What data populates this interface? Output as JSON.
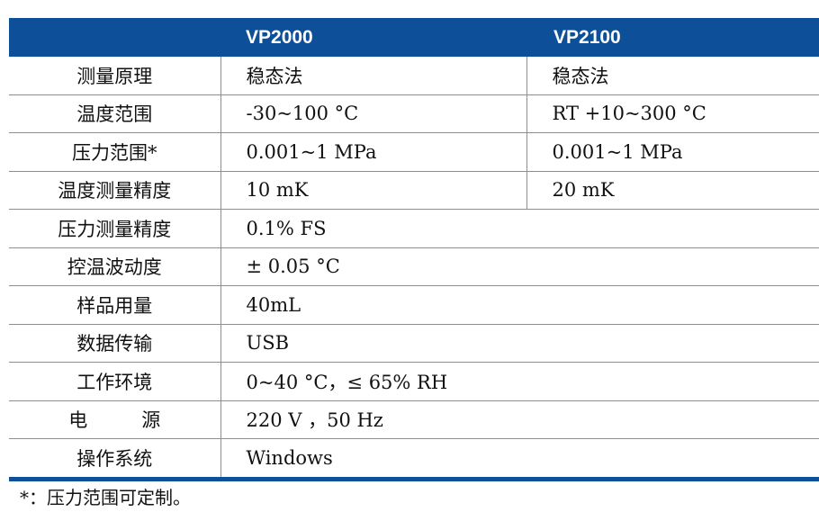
{
  "header": {
    "col1": "",
    "col2": "VP2000",
    "col3": "VP2100"
  },
  "rows": {
    "r0": {
      "label": "测量原理",
      "v1": "稳态法",
      "v2": "稳态法"
    },
    "r1": {
      "label": "温度范围",
      "v1": "-30~100 °C",
      "v2": "RT +10~300 °C"
    },
    "r2": {
      "label": "压力范围*",
      "v1": "0.001~1 MPa",
      "v2": "0.001~1 MPa"
    },
    "r3": {
      "label": "温度测量精度",
      "v1": "10 mK",
      "v2": "20 mK"
    },
    "r4": {
      "label": "压力测量精度",
      "v1": "0.1% FS"
    },
    "r5": {
      "label": "控温波动度",
      "v1": "± 0.05 °C"
    },
    "r6": {
      "label": "样品用量",
      "v1": "40mL"
    },
    "r7": {
      "label": "数据传输",
      "v1": "USB"
    },
    "r8": {
      "label": "工作环境",
      "v1": "0~40 °C，≤ 65% RH"
    },
    "r9": {
      "label_a": "电",
      "label_b": "源",
      "v1": "220 V ，50 Hz"
    },
    "r10": {
      "label": "操作系统",
      "v1": "Windows"
    }
  },
  "footnote": "*：压力范围可定制。",
  "colors": {
    "header_bg": "#0d4f99",
    "header_text": "#ffffff",
    "border": "#8e8e8e"
  }
}
